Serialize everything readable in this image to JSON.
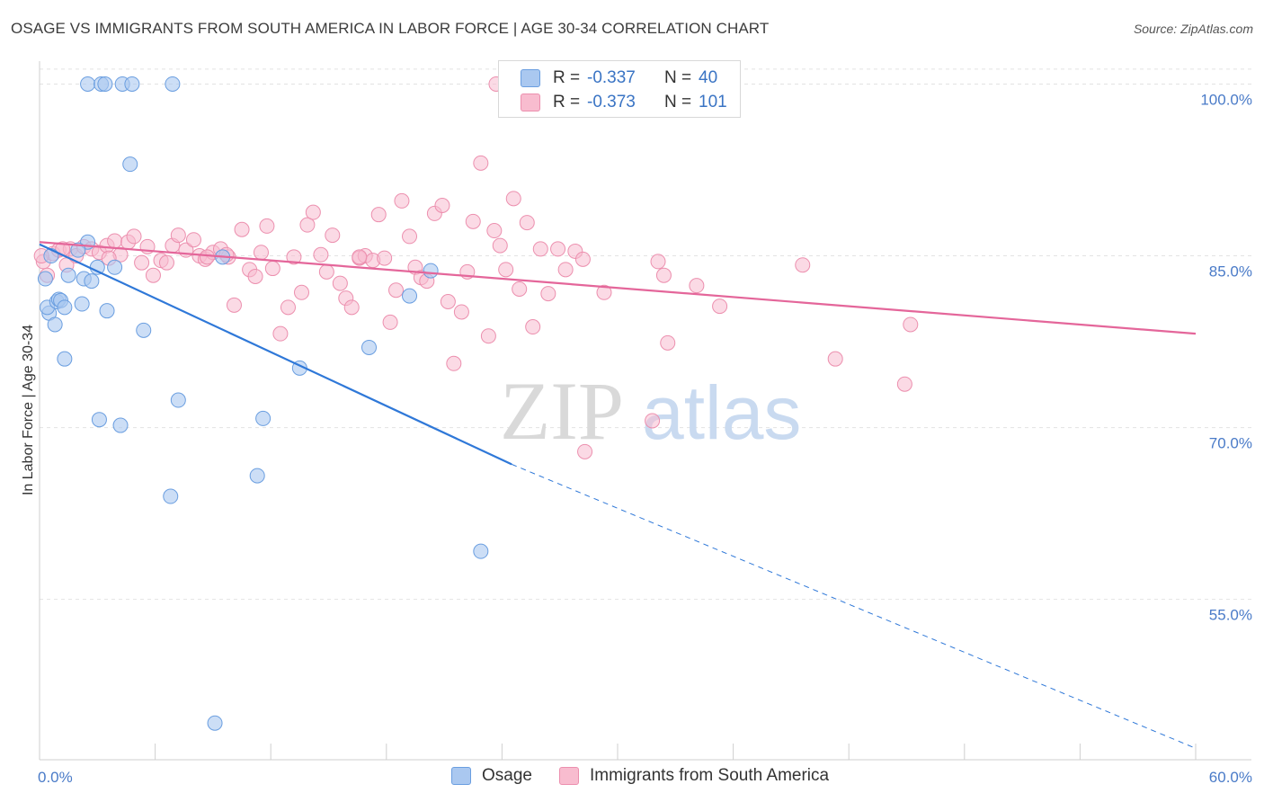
{
  "title": "OSAGE VS IMMIGRANTS FROM SOUTH AMERICA IN LABOR FORCE | AGE 30-34 CORRELATION CHART",
  "source": "Source: ZipAtlas.com",
  "watermark": {
    "zip": "ZIP",
    "atlas": "atlas"
  },
  "legend": {
    "osage": {
      "r_label": "R = ",
      "r_value": "-0.337",
      "n_label": "N = ",
      "n_value": "40"
    },
    "immigrants": {
      "r_label": "R = ",
      "r_value": "-0.373",
      "n_label": "N = ",
      "n_value": "101"
    }
  },
  "bottom_legend": {
    "osage": "Osage",
    "immigrants": "Immigrants from South America"
  },
  "colors": {
    "osage_fill": "#aac8f0",
    "osage_stroke": "#6a9ee0",
    "osage_line": "#2f78d8",
    "imm_fill": "#f8bccf",
    "imm_stroke": "#ec8fae",
    "imm_line": "#e4669a",
    "tick_text": "#4a7bc8",
    "grid": "#e2e2e2"
  },
  "chart_data": {
    "type": "scatter",
    "title": "OSAGE VS IMMIGRANTS FROM SOUTH AMERICA IN LABOR FORCE | AGE 30-34 CORRELATION CHART",
    "xlabel": "",
    "ylabel": "In Labor Force | Age 30-34",
    "xlim": [
      0,
      60
    ],
    "ylim": [
      41,
      102
    ],
    "y_ticks": [
      55,
      70,
      85,
      100
    ],
    "y_tick_labels": [
      "55.0%",
      "70.0%",
      "85.0%",
      "100.0%"
    ],
    "x_tick_labels": [
      "0.0%",
      "60.0%"
    ],
    "grid": true,
    "series": [
      {
        "name": "Osage",
        "R": -0.337,
        "N": 40,
        "trend": {
          "x0": 0,
          "y0": 86.0,
          "x_solid_end": 24.5,
          "y_solid_end": 66.8,
          "x_dash_end": 60,
          "y_dash_end": 42.0
        },
        "points": [
          [
            2.5,
            100
          ],
          [
            3.2,
            100
          ],
          [
            3.4,
            100
          ],
          [
            4.3,
            100
          ],
          [
            4.8,
            100
          ],
          [
            6.9,
            100
          ],
          [
            4.7,
            93.0
          ],
          [
            0.3,
            83.0
          ],
          [
            0.5,
            80.0
          ],
          [
            0.4,
            80.5
          ],
          [
            0.8,
            79.0
          ],
          [
            0.9,
            81.0
          ],
          [
            1.0,
            81.2
          ],
          [
            1.1,
            81.1
          ],
          [
            1.3,
            80.5
          ],
          [
            1.5,
            83.3
          ],
          [
            2.2,
            80.8
          ],
          [
            2.3,
            83.0
          ],
          [
            2.5,
            86.2
          ],
          [
            2.7,
            82.8
          ],
          [
            3.0,
            84.0
          ],
          [
            3.5,
            80.2
          ],
          [
            3.9,
            84.0
          ],
          [
            1.3,
            76.0
          ],
          [
            5.4,
            78.5
          ],
          [
            3.1,
            70.7
          ],
          [
            4.2,
            70.2
          ],
          [
            7.2,
            72.4
          ],
          [
            9.5,
            84.9
          ],
          [
            11.6,
            70.8
          ],
          [
            13.5,
            75.2
          ],
          [
            11.3,
            65.8
          ],
          [
            6.8,
            64.0
          ],
          [
            9.1,
            44.2
          ],
          [
            17.1,
            77.0
          ],
          [
            19.2,
            81.5
          ],
          [
            20.3,
            83.7
          ],
          [
            22.9,
            59.2
          ],
          [
            0.6,
            85.0
          ],
          [
            2.0,
            85.5
          ]
        ]
      },
      {
        "name": "Immigrants from South America",
        "R": -0.373,
        "N": 101,
        "trend": {
          "x0": 0,
          "y0": 86.2,
          "x1": 60,
          "y1": 78.2
        },
        "points": [
          [
            0.2,
            84.5
          ],
          [
            0.4,
            83.3
          ],
          [
            0.7,
            85.2
          ],
          [
            1.0,
            85.5
          ],
          [
            1.4,
            84.2
          ],
          [
            1.6,
            85.6
          ],
          [
            1.9,
            85.0
          ],
          [
            2.3,
            85.8
          ],
          [
            2.7,
            85.6
          ],
          [
            3.1,
            85.3
          ],
          [
            3.5,
            85.9
          ],
          [
            3.9,
            86.3
          ],
          [
            4.2,
            85.1
          ],
          [
            4.6,
            86.2
          ],
          [
            4.9,
            86.7
          ],
          [
            5.3,
            84.4
          ],
          [
            5.6,
            85.8
          ],
          [
            5.9,
            83.3
          ],
          [
            6.3,
            84.6
          ],
          [
            6.6,
            84.4
          ],
          [
            6.9,
            85.9
          ],
          [
            7.2,
            86.8
          ],
          [
            7.6,
            85.5
          ],
          [
            8.0,
            86.4
          ],
          [
            8.3,
            85.0
          ],
          [
            8.6,
            84.7
          ],
          [
            9.0,
            85.3
          ],
          [
            9.4,
            85.6
          ],
          [
            9.8,
            84.9
          ],
          [
            10.1,
            80.7
          ],
          [
            10.5,
            87.3
          ],
          [
            10.9,
            83.8
          ],
          [
            11.2,
            83.2
          ],
          [
            11.5,
            85.3
          ],
          [
            11.8,
            87.6
          ],
          [
            12.1,
            83.9
          ],
          [
            12.5,
            78.2
          ],
          [
            12.9,
            80.5
          ],
          [
            13.2,
            84.9
          ],
          [
            13.6,
            81.8
          ],
          [
            13.9,
            87.7
          ],
          [
            14.2,
            88.8
          ],
          [
            14.6,
            85.1
          ],
          [
            14.9,
            83.6
          ],
          [
            15.2,
            86.8
          ],
          [
            15.6,
            82.6
          ],
          [
            15.9,
            81.3
          ],
          [
            16.2,
            80.5
          ],
          [
            16.6,
            84.8
          ],
          [
            16.9,
            85.0
          ],
          [
            17.3,
            84.6
          ],
          [
            17.6,
            88.6
          ],
          [
            17.9,
            84.8
          ],
          [
            18.2,
            79.2
          ],
          [
            18.5,
            82.0
          ],
          [
            18.8,
            89.8
          ],
          [
            19.2,
            86.7
          ],
          [
            19.5,
            84.0
          ],
          [
            19.8,
            83.1
          ],
          [
            20.1,
            82.8
          ],
          [
            20.5,
            88.7
          ],
          [
            20.9,
            89.4
          ],
          [
            21.2,
            81.0
          ],
          [
            21.5,
            75.6
          ],
          [
            21.9,
            80.1
          ],
          [
            22.2,
            83.6
          ],
          [
            22.5,
            88.0
          ],
          [
            22.9,
            93.1
          ],
          [
            23.3,
            78.0
          ],
          [
            23.6,
            87.2
          ],
          [
            23.9,
            85.9
          ],
          [
            24.2,
            83.8
          ],
          [
            24.6,
            90.0
          ],
          [
            24.9,
            82.1
          ],
          [
            25.3,
            87.9
          ],
          [
            25.6,
            78.8
          ],
          [
            26.0,
            85.6
          ],
          [
            26.4,
            81.7
          ],
          [
            26.9,
            85.6
          ],
          [
            27.3,
            83.8
          ],
          [
            27.8,
            85.4
          ],
          [
            28.2,
            84.7
          ],
          [
            29.3,
            81.8
          ],
          [
            31.8,
            70.6
          ],
          [
            32.1,
            84.5
          ],
          [
            32.4,
            83.3
          ],
          [
            34.1,
            82.4
          ],
          [
            35.3,
            80.6
          ],
          [
            39.6,
            84.2
          ],
          [
            41.3,
            76.0
          ],
          [
            44.9,
            73.8
          ],
          [
            45.2,
            79.0
          ],
          [
            28.3,
            67.9
          ],
          [
            32.6,
            77.4
          ],
          [
            23.7,
            100
          ],
          [
            16.6,
            84.9
          ],
          [
            9.7,
            85.1
          ],
          [
            8.7,
            84.9
          ],
          [
            3.6,
            84.8
          ],
          [
            1.2,
            85.6
          ],
          [
            0.1,
            85.0
          ]
        ]
      }
    ]
  }
}
